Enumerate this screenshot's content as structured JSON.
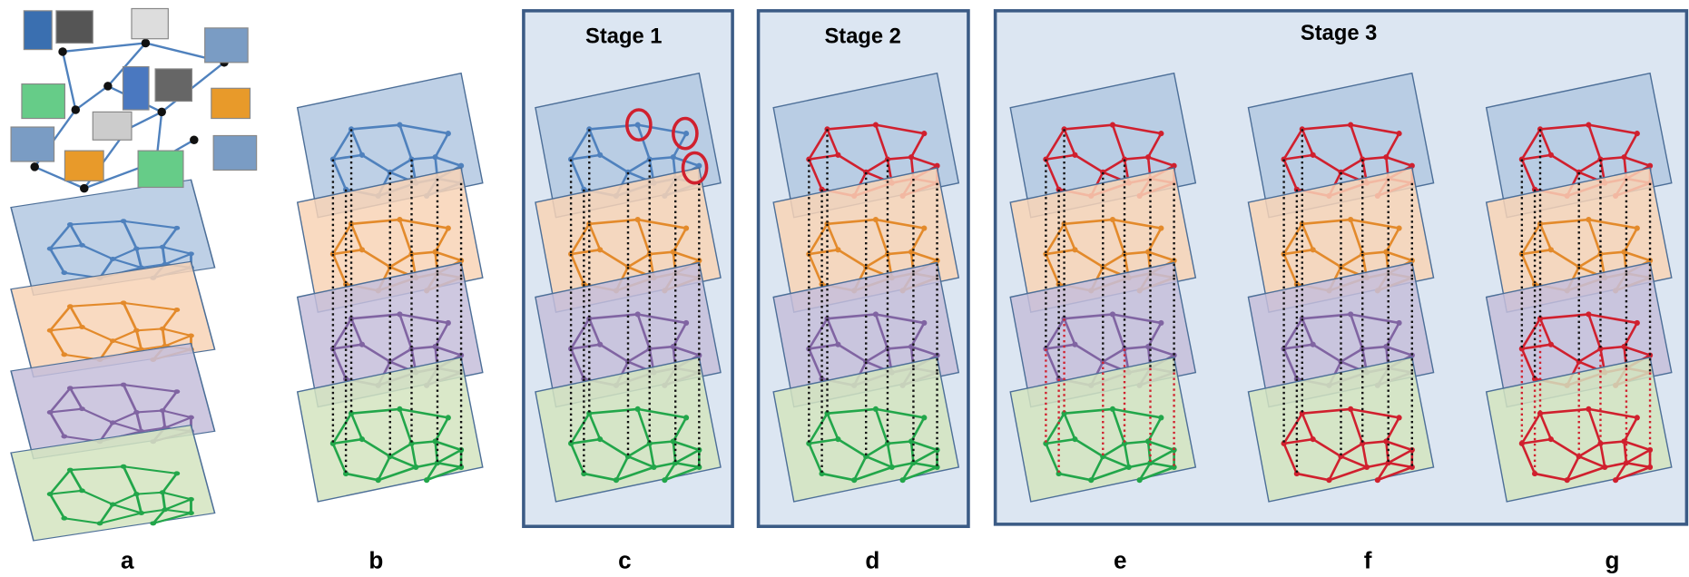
{
  "stages": [
    "Stage 1",
    "Stage 2",
    "Stage 3"
  ],
  "panels": [
    "a",
    "b",
    "c",
    "d",
    "e",
    "f",
    "g"
  ]
}
